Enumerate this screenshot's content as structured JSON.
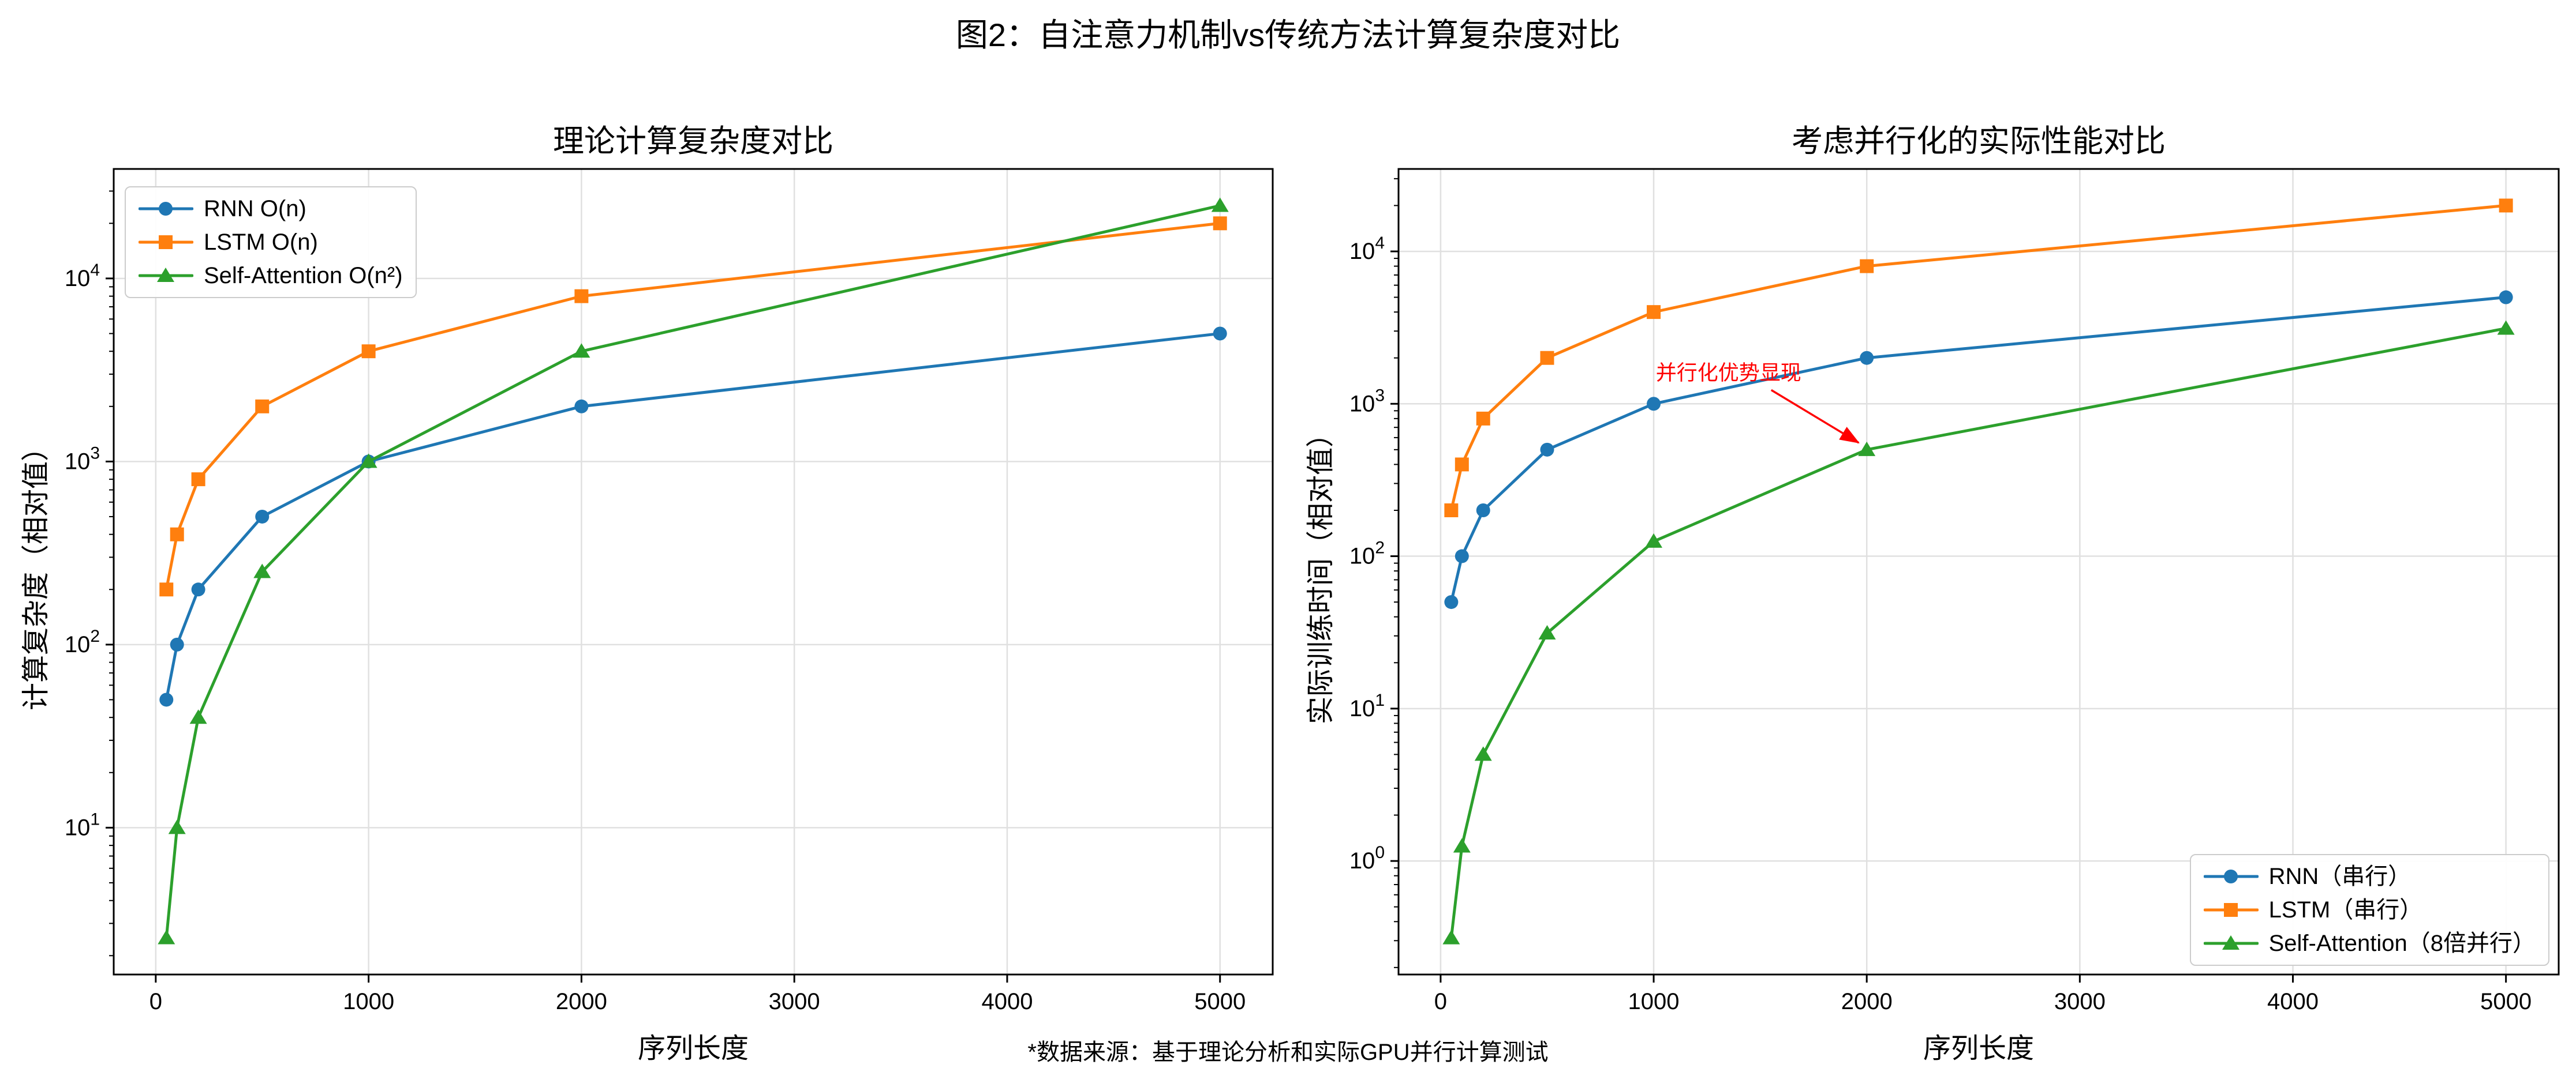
{
  "figure": {
    "title": "图2：自注意力机制vs传统方法计算复杂度对比",
    "footnote": "*数据来源：基于理论分析和实际GPU并行计算测试",
    "colors": {
      "rnn": "#1f77b4",
      "lstm": "#ff7f0e",
      "self_attention": "#2ca02c",
      "annotation": "#ff0000",
      "grid": "#e0e0e0",
      "spine": "#000000",
      "legend_border": "#cccccc"
    }
  },
  "chart_data": [
    {
      "type": "line",
      "title": "理论计算复杂度对比",
      "xlabel": "序列长度",
      "ylabel": "计算复杂度（相对值）",
      "yscale": "log",
      "grid": true,
      "legend_position": "upper-left",
      "x": [
        50,
        100,
        200,
        500,
        1000,
        2000,
        5000
      ],
      "xticks": [
        0,
        1000,
        2000,
        3000,
        4000,
        5000
      ],
      "yticks_exponents": [
        1,
        2,
        3,
        4
      ],
      "xlim": [
        -197.5,
        5247.5
      ],
      "ylim_log10": [
        0.198,
        4.598
      ],
      "series": [
        {
          "name": "RNN O(n)",
          "marker": "circle",
          "color": "#1f77b4",
          "values": [
            50,
            100,
            200,
            500,
            1000,
            2000,
            5000
          ]
        },
        {
          "name": "LSTM O(n)",
          "marker": "square",
          "color": "#ff7f0e",
          "values": [
            200,
            400,
            800,
            2000,
            4000,
            8000,
            20000
          ]
        },
        {
          "name": "Self-Attention O(n²)",
          "marker": "triangle",
          "color": "#2ca02c",
          "values": [
            2.5,
            10,
            40,
            250,
            1000,
            4000,
            25000
          ]
        }
      ]
    },
    {
      "type": "line",
      "title": "考虑并行化的实际性能对比",
      "xlabel": "序列长度",
      "ylabel": "实际训练时间（相对值）",
      "yscale": "log",
      "grid": true,
      "legend_position": "lower-right",
      "x": [
        50,
        100,
        200,
        500,
        1000,
        2000,
        5000
      ],
      "xticks": [
        0,
        1000,
        2000,
        3000,
        4000,
        5000
      ],
      "yticks_exponents": [
        0,
        1,
        2,
        3,
        4
      ],
      "xlim": [
        -197.5,
        5247.5
      ],
      "ylim_log10": [
        -0.745,
        4.541
      ],
      "series": [
        {
          "name": "RNN（串行）",
          "marker": "circle",
          "color": "#1f77b4",
          "values": [
            50,
            100,
            200,
            500,
            1000,
            2000,
            5000
          ]
        },
        {
          "name": "LSTM（串行）",
          "marker": "square",
          "color": "#ff7f0e",
          "values": [
            200,
            400,
            800,
            2000,
            4000,
            8000,
            20000
          ]
        },
        {
          "name": "Self-Attention（8倍并行）",
          "marker": "triangle",
          "color": "#2ca02c",
          "values": [
            0.3125,
            1.25,
            5,
            31.25,
            125,
            500,
            3125
          ]
        }
      ],
      "annotation": {
        "text": "并行化优势显现",
        "color": "#ff0000",
        "target": {
          "x": 2000,
          "y": 500
        },
        "text_pos": {
          "x": 1010,
          "y": 1600
        }
      }
    }
  ]
}
